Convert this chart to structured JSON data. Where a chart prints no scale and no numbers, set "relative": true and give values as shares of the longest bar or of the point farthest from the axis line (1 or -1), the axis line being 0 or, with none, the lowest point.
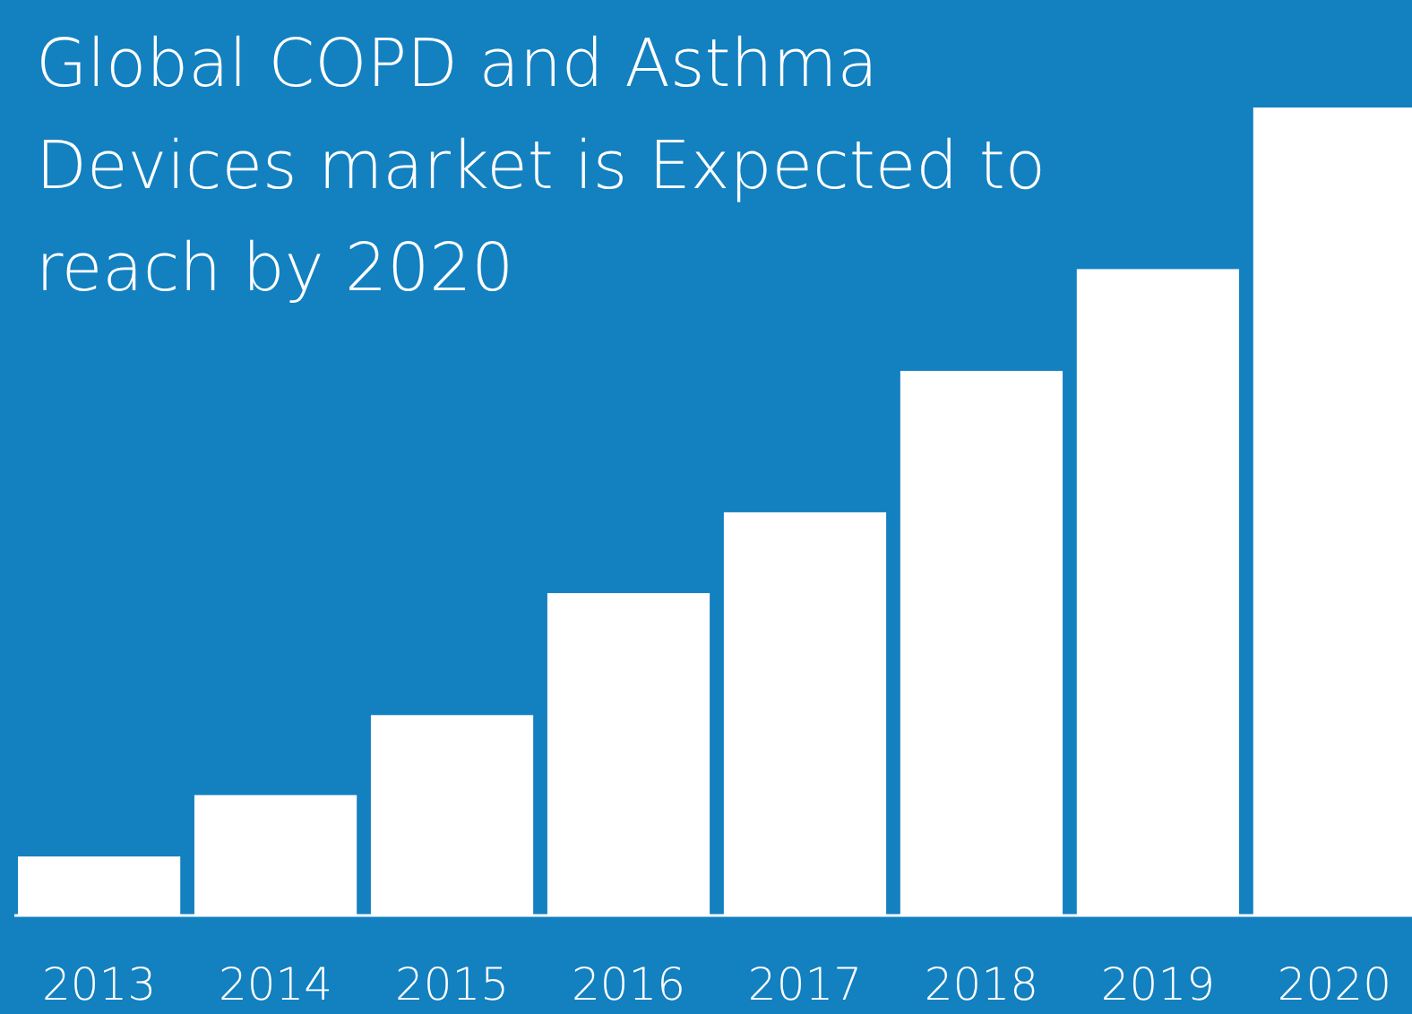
{
  "chart_data": {
    "type": "bar",
    "title": "Global COPD and Asthma Devices market is Expected to reach by 2020",
    "categories": [
      "2013",
      "2014",
      "2015",
      "2016",
      "2017",
      "2018",
      "2019",
      "2020"
    ],
    "values": [
      0.073,
      0.149,
      0.248,
      0.399,
      0.499,
      0.674,
      0.8,
      1
    ],
    "color": "#ffffff",
    "relative": true
  }
}
